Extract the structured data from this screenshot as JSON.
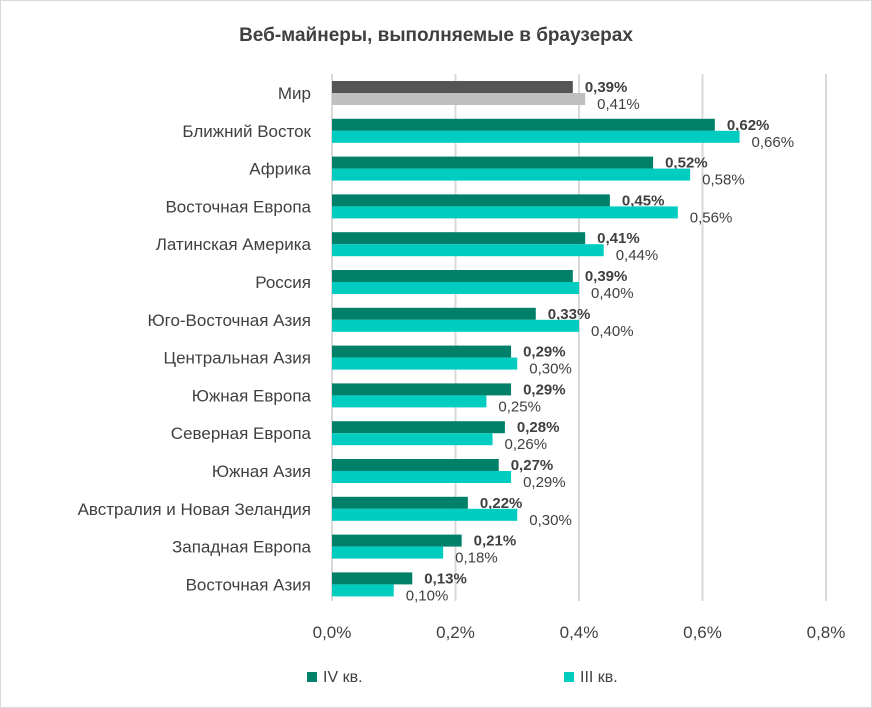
{
  "chart_data": {
    "type": "bar",
    "orientation": "horizontal",
    "title": "Веб-майнеры, выполняемые в браузерах",
    "categories": [
      "Мир",
      "Ближний Восток",
      "Африка",
      "Восточная Европа",
      "Латинская Америка",
      "Россия",
      "Юго-Восточная Азия",
      "Центральная Азия",
      "Южная Европа",
      "Северная Европа",
      "Южная Азия",
      "Австралия и Новая Зеландия",
      "Западная Европа",
      "Восточная Азия"
    ],
    "series": [
      {
        "name": "IV кв.",
        "color": "#008069",
        "highlight_color": "#555555",
        "values": [
          0.39,
          0.62,
          0.52,
          0.45,
          0.41,
          0.39,
          0.33,
          0.29,
          0.29,
          0.28,
          0.27,
          0.22,
          0.21,
          0.13
        ],
        "labels": [
          "0,39%",
          "0,62%",
          "0,52%",
          "0,45%",
          "0,41%",
          "0,39%",
          "0,33%",
          "0,29%",
          "0,29%",
          "0,28%",
          "0,27%",
          "0,22%",
          "0,21%",
          "0,13%"
        ]
      },
      {
        "name": "III кв.",
        "color": "#00ccbf",
        "highlight_color": "#bfbfbf",
        "values": [
          0.41,
          0.66,
          0.58,
          0.56,
          0.44,
          0.4,
          0.4,
          0.3,
          0.25,
          0.26,
          0.29,
          0.3,
          0.18,
          0.1
        ],
        "labels": [
          "0,41%",
          "0,66%",
          "0,58%",
          "0,56%",
          "0,44%",
          "0,40%",
          "0,40%",
          "0,30%",
          "0,25%",
          "0,26%",
          "0,29%",
          "0,30%",
          "0,18%",
          "0,10%"
        ]
      }
    ],
    "xlim": [
      0,
      0.8
    ],
    "xticks": [
      0,
      0.2,
      0.4,
      0.6,
      0.8
    ],
    "xtick_labels": [
      "0,0%",
      "0,2%",
      "0,4%",
      "0,6%",
      "0,8%"
    ],
    "grid": true,
    "legend_position": "bottom"
  }
}
